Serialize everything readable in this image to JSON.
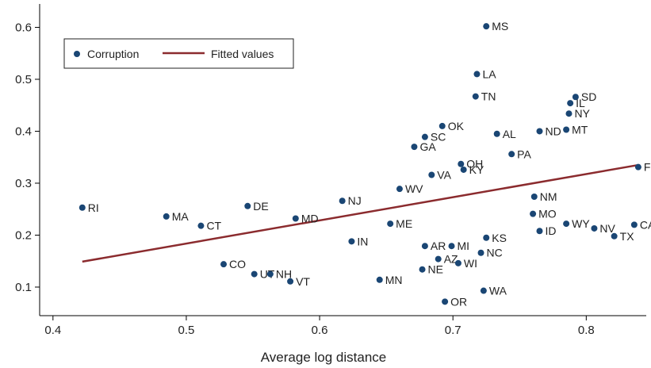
{
  "chart_data": {
    "type": "scatter",
    "xlabel": "Average log distance",
    "ylabel": "",
    "xlim": [
      0.39,
      0.845
    ],
    "ylim": [
      0.045,
      0.645
    ],
    "xticks": [
      "0.4",
      "0.5",
      "0.6",
      "0.7",
      "0.8"
    ],
    "yticks": [
      "0.1",
      "0.2",
      "0.3",
      "0.4",
      "0.5",
      "0.6"
    ],
    "grid": false,
    "legend_position": "top-left",
    "colors": {
      "points": "#1a4674",
      "fit": "#8b2b2e",
      "axis": "#000000"
    },
    "series": [
      {
        "name": "Corruption",
        "kind": "scatter",
        "points": [
          {
            "label": "MS",
            "x": 0.725,
            "y": 0.602
          },
          {
            "label": "LA",
            "x": 0.718,
            "y": 0.51
          },
          {
            "label": "TN",
            "x": 0.717,
            "y": 0.467
          },
          {
            "label": "SD",
            "x": 0.792,
            "y": 0.466
          },
          {
            "label": "IL",
            "x": 0.788,
            "y": 0.454
          },
          {
            "label": "NY",
            "x": 0.787,
            "y": 0.434
          },
          {
            "label": "OK",
            "x": 0.692,
            "y": 0.41
          },
          {
            "label": "ND",
            "x": 0.765,
            "y": 0.4
          },
          {
            "label": "MT",
            "x": 0.785,
            "y": 0.403
          },
          {
            "label": "AL",
            "x": 0.733,
            "y": 0.395
          },
          {
            "label": "SC",
            "x": 0.679,
            "y": 0.389
          },
          {
            "label": "GA",
            "x": 0.671,
            "y": 0.37
          },
          {
            "label": "PA",
            "x": 0.744,
            "y": 0.356
          },
          {
            "label": "OH",
            "x": 0.706,
            "y": 0.337
          },
          {
            "label": "KY",
            "x": 0.708,
            "y": 0.326
          },
          {
            "label": "FL",
            "x": 0.839,
            "y": 0.331
          },
          {
            "label": "VA",
            "x": 0.684,
            "y": 0.316
          },
          {
            "label": "WV",
            "x": 0.66,
            "y": 0.289
          },
          {
            "label": "NM",
            "x": 0.761,
            "y": 0.274
          },
          {
            "label": "NJ",
            "x": 0.617,
            "y": 0.266
          },
          {
            "label": "RI",
            "x": 0.422,
            "y": 0.253
          },
          {
            "label": "DE",
            "x": 0.546,
            "y": 0.256
          },
          {
            "label": "MO",
            "x": 0.76,
            "y": 0.241
          },
          {
            "label": "MA",
            "x": 0.485,
            "y": 0.236
          },
          {
            "label": "MD",
            "x": 0.582,
            "y": 0.232
          },
          {
            "label": "ME",
            "x": 0.653,
            "y": 0.222
          },
          {
            "label": "WY",
            "x": 0.785,
            "y": 0.222
          },
          {
            "label": "CA",
            "x": 0.836,
            "y": 0.22
          },
          {
            "label": "CT",
            "x": 0.511,
            "y": 0.218
          },
          {
            "label": "NV",
            "x": 0.806,
            "y": 0.213
          },
          {
            "label": "ID",
            "x": 0.765,
            "y": 0.208
          },
          {
            "label": "TX",
            "x": 0.821,
            "y": 0.198
          },
          {
            "label": "KS",
            "x": 0.725,
            "y": 0.195
          },
          {
            "label": "IN",
            "x": 0.624,
            "y": 0.188
          },
          {
            "label": "AR",
            "x": 0.679,
            "y": 0.179
          },
          {
            "label": "MI",
            "x": 0.699,
            "y": 0.179
          },
          {
            "label": "NC",
            "x": 0.721,
            "y": 0.166
          },
          {
            "label": "AZ",
            "x": 0.689,
            "y": 0.154
          },
          {
            "label": "WI",
            "x": 0.704,
            "y": 0.146
          },
          {
            "label": "CO",
            "x": 0.528,
            "y": 0.144
          },
          {
            "label": "NE",
            "x": 0.677,
            "y": 0.134
          },
          {
            "label": "UT",
            "x": 0.551,
            "y": 0.125
          },
          {
            "label": "NH",
            "x": 0.563,
            "y": 0.125
          },
          {
            "label": "MN",
            "x": 0.645,
            "y": 0.114
          },
          {
            "label": "VT",
            "x": 0.578,
            "y": 0.111
          },
          {
            "label": "WA",
            "x": 0.723,
            "y": 0.093
          },
          {
            "label": "OR",
            "x": 0.694,
            "y": 0.072
          }
        ]
      },
      {
        "name": "Fitted values",
        "kind": "line",
        "points": [
          {
            "x": 0.422,
            "y": 0.149
          },
          {
            "x": 0.839,
            "y": 0.335
          }
        ]
      }
    ]
  }
}
